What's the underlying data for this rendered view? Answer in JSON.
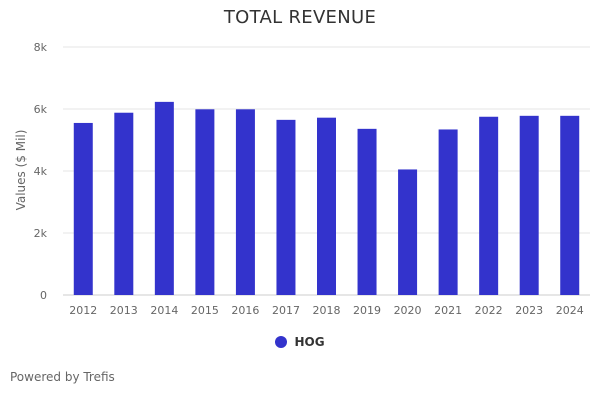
{
  "chart_data": {
    "type": "bar",
    "title": "TOTAL REVENUE",
    "xlabel": "",
    "ylabel": "Values ($ Mil)",
    "categories": [
      "2012",
      "2013",
      "2014",
      "2015",
      "2016",
      "2017",
      "2018",
      "2019",
      "2020",
      "2021",
      "2022",
      "2023",
      "2024"
    ],
    "series": [
      {
        "name": "HOG",
        "values": [
          5550,
          5880,
          6230,
          5990,
          5990,
          5650,
          5720,
          5360,
          4050,
          5340,
          5750,
          5780,
          5780
        ]
      }
    ],
    "ylim": [
      0,
      8000
    ],
    "yticks": [
      0,
      2000,
      4000,
      6000,
      8000
    ],
    "ytick_labels": [
      "0",
      "2k",
      "4k",
      "6k",
      "8k"
    ],
    "grid": true,
    "legend_position": "bottom-center",
    "colors": {
      "bar": "#3333cc"
    }
  },
  "footer": {
    "text": "Powered by Trefis"
  }
}
